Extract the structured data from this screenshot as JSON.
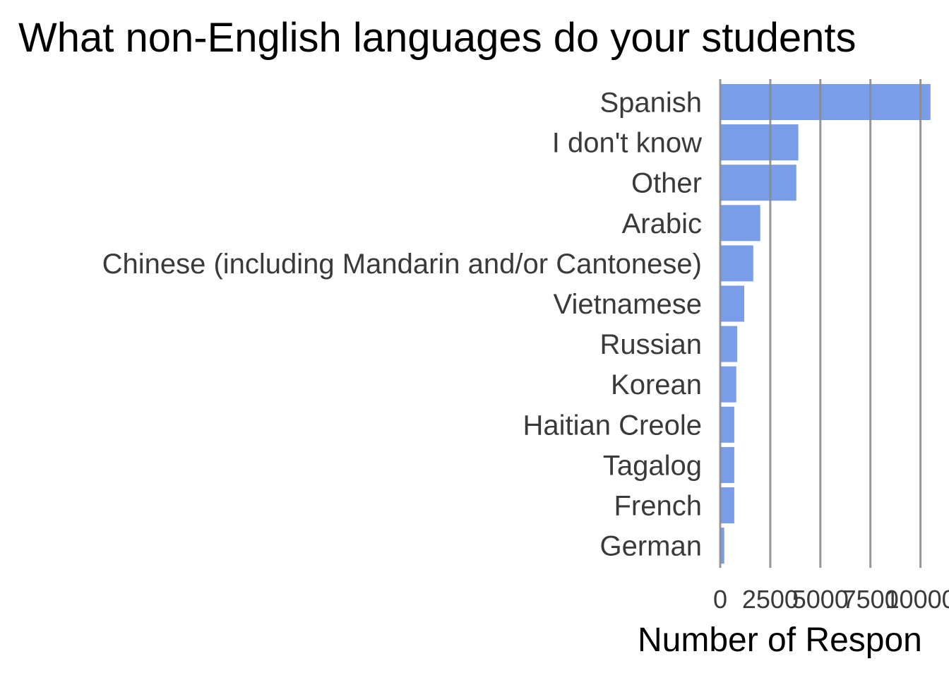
{
  "chart_data": {
    "type": "bar",
    "orientation": "horizontal",
    "title": "What non-English languages do your students",
    "xlabel": "Number of Respon",
    "ylabel": "",
    "categories": [
      "Spanish",
      "I don't know",
      "Other",
      "Arabic",
      "Chinese (including Mandarin and/or Cantonese)",
      "Vietnamese",
      "Russian",
      "Korean",
      "Haitian Creole",
      "Tagalog",
      "French",
      "German"
    ],
    "values": [
      10500,
      3900,
      3800,
      2000,
      1650,
      1200,
      850,
      800,
      700,
      700,
      700,
      200
    ],
    "xticks": [
      0,
      2500,
      5000,
      7500,
      10000
    ],
    "xtick_labels": [
      "0",
      "2500",
      "5000",
      "7500",
      "10000"
    ],
    "xlim": [
      0,
      10500
    ],
    "grid": "vertical-major",
    "bar_color": "#7a9de9",
    "gridline_color": "#8c8c8c"
  }
}
